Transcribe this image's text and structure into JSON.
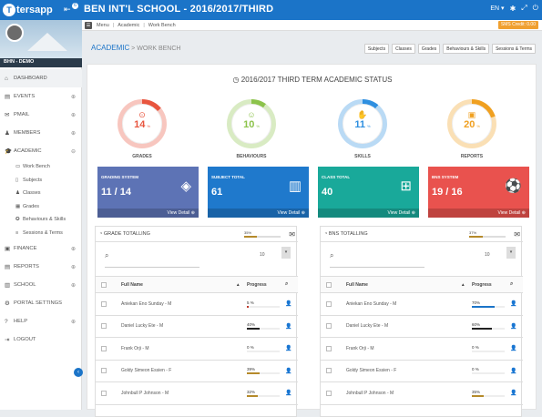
{
  "app": {
    "logo": "tersapp",
    "school": "BEN INT'L SCHOOL - 2016/2017/THIRD",
    "notif": "6",
    "lang": "EN",
    "sms": "SMS Credit: 0.00"
  },
  "user": {
    "name": "BHN - DEMO"
  },
  "breadcrumb": {
    "home": "Menu",
    "mid": "Academic",
    "current": "Work Bench"
  },
  "sidebar": {
    "items": [
      {
        "icon": "⌂",
        "label": "DASHBOARD",
        "chev": ""
      },
      {
        "icon": "▤",
        "label": "EVENTS",
        "chev": "⊕"
      },
      {
        "icon": "✉",
        "label": "PMAIL",
        "chev": "⊕"
      },
      {
        "icon": "♟",
        "label": "MEMBERS",
        "chev": "⊕"
      },
      {
        "icon": "🎓",
        "label": "ACADEMIC",
        "chev": "⊖"
      }
    ],
    "subitems": [
      {
        "icon": "▭",
        "label": "Work Bench"
      },
      {
        "icon": "▯",
        "label": "Subjects"
      },
      {
        "icon": "♟",
        "label": "Classes"
      },
      {
        "icon": "▦",
        "label": "Grades"
      },
      {
        "icon": "✪",
        "label": "Behaviours & Skills"
      },
      {
        "icon": "≡",
        "label": "Sessions & Terms"
      }
    ],
    "items2": [
      {
        "icon": "▣",
        "label": "FINANCE",
        "chev": "⊕"
      },
      {
        "icon": "▤",
        "label": "REPORTS",
        "chev": "⊕"
      },
      {
        "icon": "▥",
        "label": "SCHOOL",
        "chev": "⊕"
      },
      {
        "icon": "⚙",
        "label": "PORTAL SETTINGS",
        "chev": ""
      },
      {
        "icon": "?",
        "label": "HELP",
        "chev": "⊕"
      },
      {
        "icon": "⇥",
        "label": "LOGOUT",
        "chev": ""
      }
    ]
  },
  "page": {
    "section": "ACADEMIC",
    "sep": " > ",
    "sub": "WORK BENCH",
    "status_title": "2016/2017 THIRD TERM ACADEMIC STATUS"
  },
  "tabs": [
    "Subjects",
    "Classes",
    "Grades",
    "Behaviours & Skills",
    "Sessions & Terms"
  ],
  "gauges": [
    {
      "label": "GRADES",
      "value": "14",
      "pct": "%",
      "color": "#e8553e",
      "icon": "⊙",
      "fill": 0.14
    },
    {
      "label": "BEHAVIOURS",
      "value": "10",
      "pct": "%",
      "color": "#8cc34b",
      "icon": "☺",
      "fill": 0.1
    },
    {
      "label": "SKILLS",
      "value": "11",
      "pct": "%",
      "color": "#2e8fe0",
      "icon": "✋",
      "fill": 0.11
    },
    {
      "label": "REPORTS",
      "value": "20",
      "pct": "%",
      "color": "#f0a020",
      "icon": "▣",
      "fill": 0.2
    }
  ],
  "cards": [
    {
      "label": "GRADING SYSTEM",
      "value": "11 / 14",
      "color": "#5d73b5",
      "icon": "◈",
      "footer": "View Detail ⊕"
    },
    {
      "label": "SUBJECT TOTAL",
      "value": "61",
      "color": "#1f79cc",
      "icon": "▥",
      "footer": "View Detail ⊕"
    },
    {
      "label": "CLASS TOTAL",
      "value": "40",
      "color": "#19a99a",
      "icon": "⊞",
      "footer": "View Detail ⊕"
    },
    {
      "label": "BNS SYSTEM",
      "value": "19 / 16",
      "color": "#e9524e",
      "icon": "⚽",
      "footer": "View Detail ⊕"
    }
  ],
  "left_table": {
    "title": "GRADE TOTALLING",
    "overall": "35%",
    "overall_fill": 0.35,
    "page_size": "10",
    "headers": {
      "name": "Full Name",
      "progress": "Progress"
    },
    "rows": [
      {
        "name": "Aniekan Eno Sunday - M",
        "progress": "5 %",
        "fill": 0.05,
        "color": "#c0392b"
      },
      {
        "name": "Daniel Lucky Ete - M",
        "progress": "40%",
        "fill": 0.4,
        "color": "#222"
      },
      {
        "name": "Frank Orji - M",
        "progress": "0 %",
        "fill": 0,
        "color": "#ccc"
      },
      {
        "name": "Goldy Simeon Essien - F",
        "progress": "39%",
        "fill": 0.39,
        "color": "#b58a2a"
      },
      {
        "name": "Johnbull P Johnson - M",
        "progress": "32%",
        "fill": 0.32,
        "color": "#b58a2a"
      }
    ]
  },
  "right_table": {
    "title": "BNS TOTALLING",
    "overall": "37%",
    "overall_fill": 0.37,
    "page_size": "10",
    "headers": {
      "name": "Full Name",
      "progress": "Progress"
    },
    "rows": [
      {
        "name": "Aniekan Eno Sunday - M",
        "progress": "70%",
        "fill": 0.7,
        "color": "#1b74c8"
      },
      {
        "name": "Daniel Lucky Ete - M",
        "progress": "60%",
        "fill": 0.6,
        "color": "#222"
      },
      {
        "name": "Frank Orji - M",
        "progress": "0 %",
        "fill": 0,
        "color": "#ccc"
      },
      {
        "name": "Goldy Simeon Essien - F",
        "progress": "0 %",
        "fill": 0,
        "color": "#ccc"
      },
      {
        "name": "Johnbull P Johnson - M",
        "progress": "35%",
        "fill": 0.35,
        "color": "#b58a2a"
      }
    ]
  }
}
